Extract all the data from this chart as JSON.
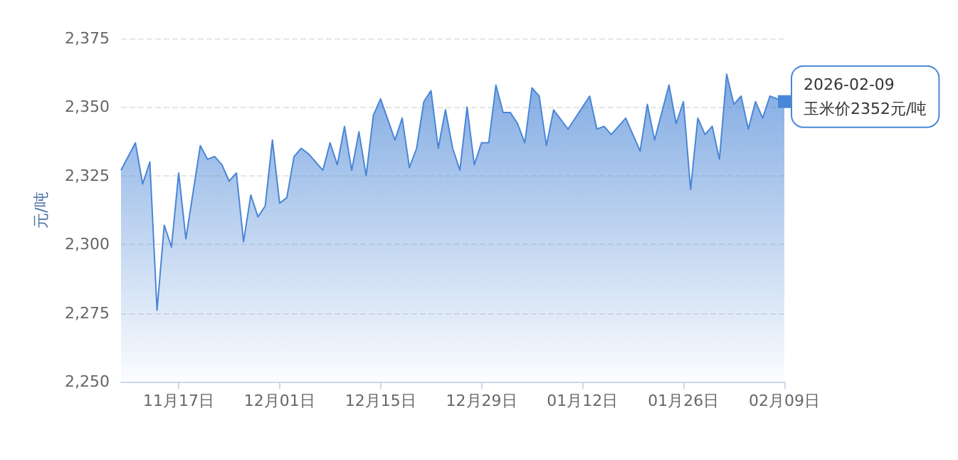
{
  "chart_data": {
    "type": "area",
    "ylabel": "元/吨",
    "x": [
      "2025-11-09",
      "2025-11-11",
      "2025-11-12",
      "2025-11-13",
      "2025-11-14",
      "2025-11-15",
      "2025-11-16",
      "2025-11-17",
      "2025-11-18",
      "2025-11-20",
      "2025-11-21",
      "2025-11-22",
      "2025-11-23",
      "2025-11-24",
      "2025-11-25",
      "2025-11-26",
      "2025-11-27",
      "2025-11-28",
      "2025-11-29",
      "2025-11-30",
      "2025-12-01",
      "2025-12-02",
      "2025-12-03",
      "2025-12-04",
      "2025-12-05",
      "2025-12-07",
      "2025-12-08",
      "2025-12-09",
      "2025-12-10",
      "2025-12-11",
      "2025-12-12",
      "2025-12-13",
      "2025-12-14",
      "2025-12-15",
      "2025-12-17",
      "2025-12-18",
      "2025-12-19",
      "2025-12-20",
      "2025-12-21",
      "2025-12-22",
      "2025-12-23",
      "2025-12-24",
      "2025-12-25",
      "2025-12-26",
      "2025-12-27",
      "2025-12-28",
      "2025-12-29",
      "2025-12-30",
      "2025-12-31",
      "2026-01-01",
      "2026-01-02",
      "2026-01-03",
      "2026-01-04",
      "2026-01-05",
      "2026-01-06",
      "2026-01-07",
      "2026-01-08",
      "2026-01-10",
      "2026-01-13",
      "2026-01-14",
      "2026-01-15",
      "2026-01-16",
      "2026-01-18",
      "2026-01-20",
      "2026-01-21",
      "2026-01-22",
      "2026-01-24",
      "2026-01-25",
      "2026-01-26",
      "2026-01-27",
      "2026-01-28",
      "2026-01-29",
      "2026-01-30",
      "2026-01-31",
      "2026-02-01",
      "2026-02-02",
      "2026-02-03",
      "2026-02-04",
      "2026-02-05",
      "2026-02-06",
      "2026-02-07",
      "2026-02-09"
    ],
    "series": [
      {
        "color": "#4a86d6",
        "values": [
          2327,
          2337,
          2322,
          2330,
          2276,
          2307,
          2299,
          2326,
          2302,
          2336,
          2331,
          2332,
          2329,
          2323,
          2326,
          2301,
          2318,
          2310,
          2314,
          2338,
          2315,
          2317,
          2332,
          2335,
          2333,
          2327,
          2337,
          2329,
          2343,
          2327,
          2341,
          2325,
          2347,
          2353,
          2338,
          2346,
          2328,
          2335,
          2352,
          2356,
          2335,
          2349,
          2335,
          2327,
          2350,
          2329,
          2337,
          2337,
          2358,
          2348,
          2348,
          2344,
          2337,
          2357,
          2354,
          2336,
          2349,
          2342,
          2354,
          2342,
          2343,
          2340,
          2346,
          2334,
          2351,
          2338,
          2358,
          2344,
          2352,
          2320,
          2346,
          2340,
          2343,
          2331,
          2362,
          2351,
          2354,
          2342,
          2352,
          2346,
          2354,
          2352
        ]
      }
    ],
    "xlim": [
      "2025-11-09",
      "2026-02-09"
    ],
    "xticks": [
      {
        "value": "2025-11-17",
        "label": "11月17日"
      },
      {
        "value": "2025-12-01",
        "label": "12月01日"
      },
      {
        "value": "2025-12-15",
        "label": "12月15日"
      },
      {
        "value": "2025-12-29",
        "label": "12月29日"
      },
      {
        "value": "2026-01-12",
        "label": "01月12日"
      },
      {
        "value": "2026-01-26",
        "label": "01月26日"
      },
      {
        "value": "2026-02-09",
        "label": "02月09日"
      }
    ],
    "ylim": [
      2250,
      2375
    ],
    "yticks": [
      {
        "value": 2250,
        "label": "2,250"
      },
      {
        "value": 2275,
        "label": "2,275"
      },
      {
        "value": 2300,
        "label": "2,300"
      },
      {
        "value": 2325,
        "label": "2,325"
      },
      {
        "value": 2350,
        "label": "2,350"
      },
      {
        "value": 2375,
        "label": "2,375"
      }
    ],
    "grid": "y",
    "marker": "none",
    "annotations": [
      {
        "text": "2026-02-09\n玉米价2352元/吨",
        "x": "2026-02-09",
        "y": 2352
      }
    ]
  }
}
